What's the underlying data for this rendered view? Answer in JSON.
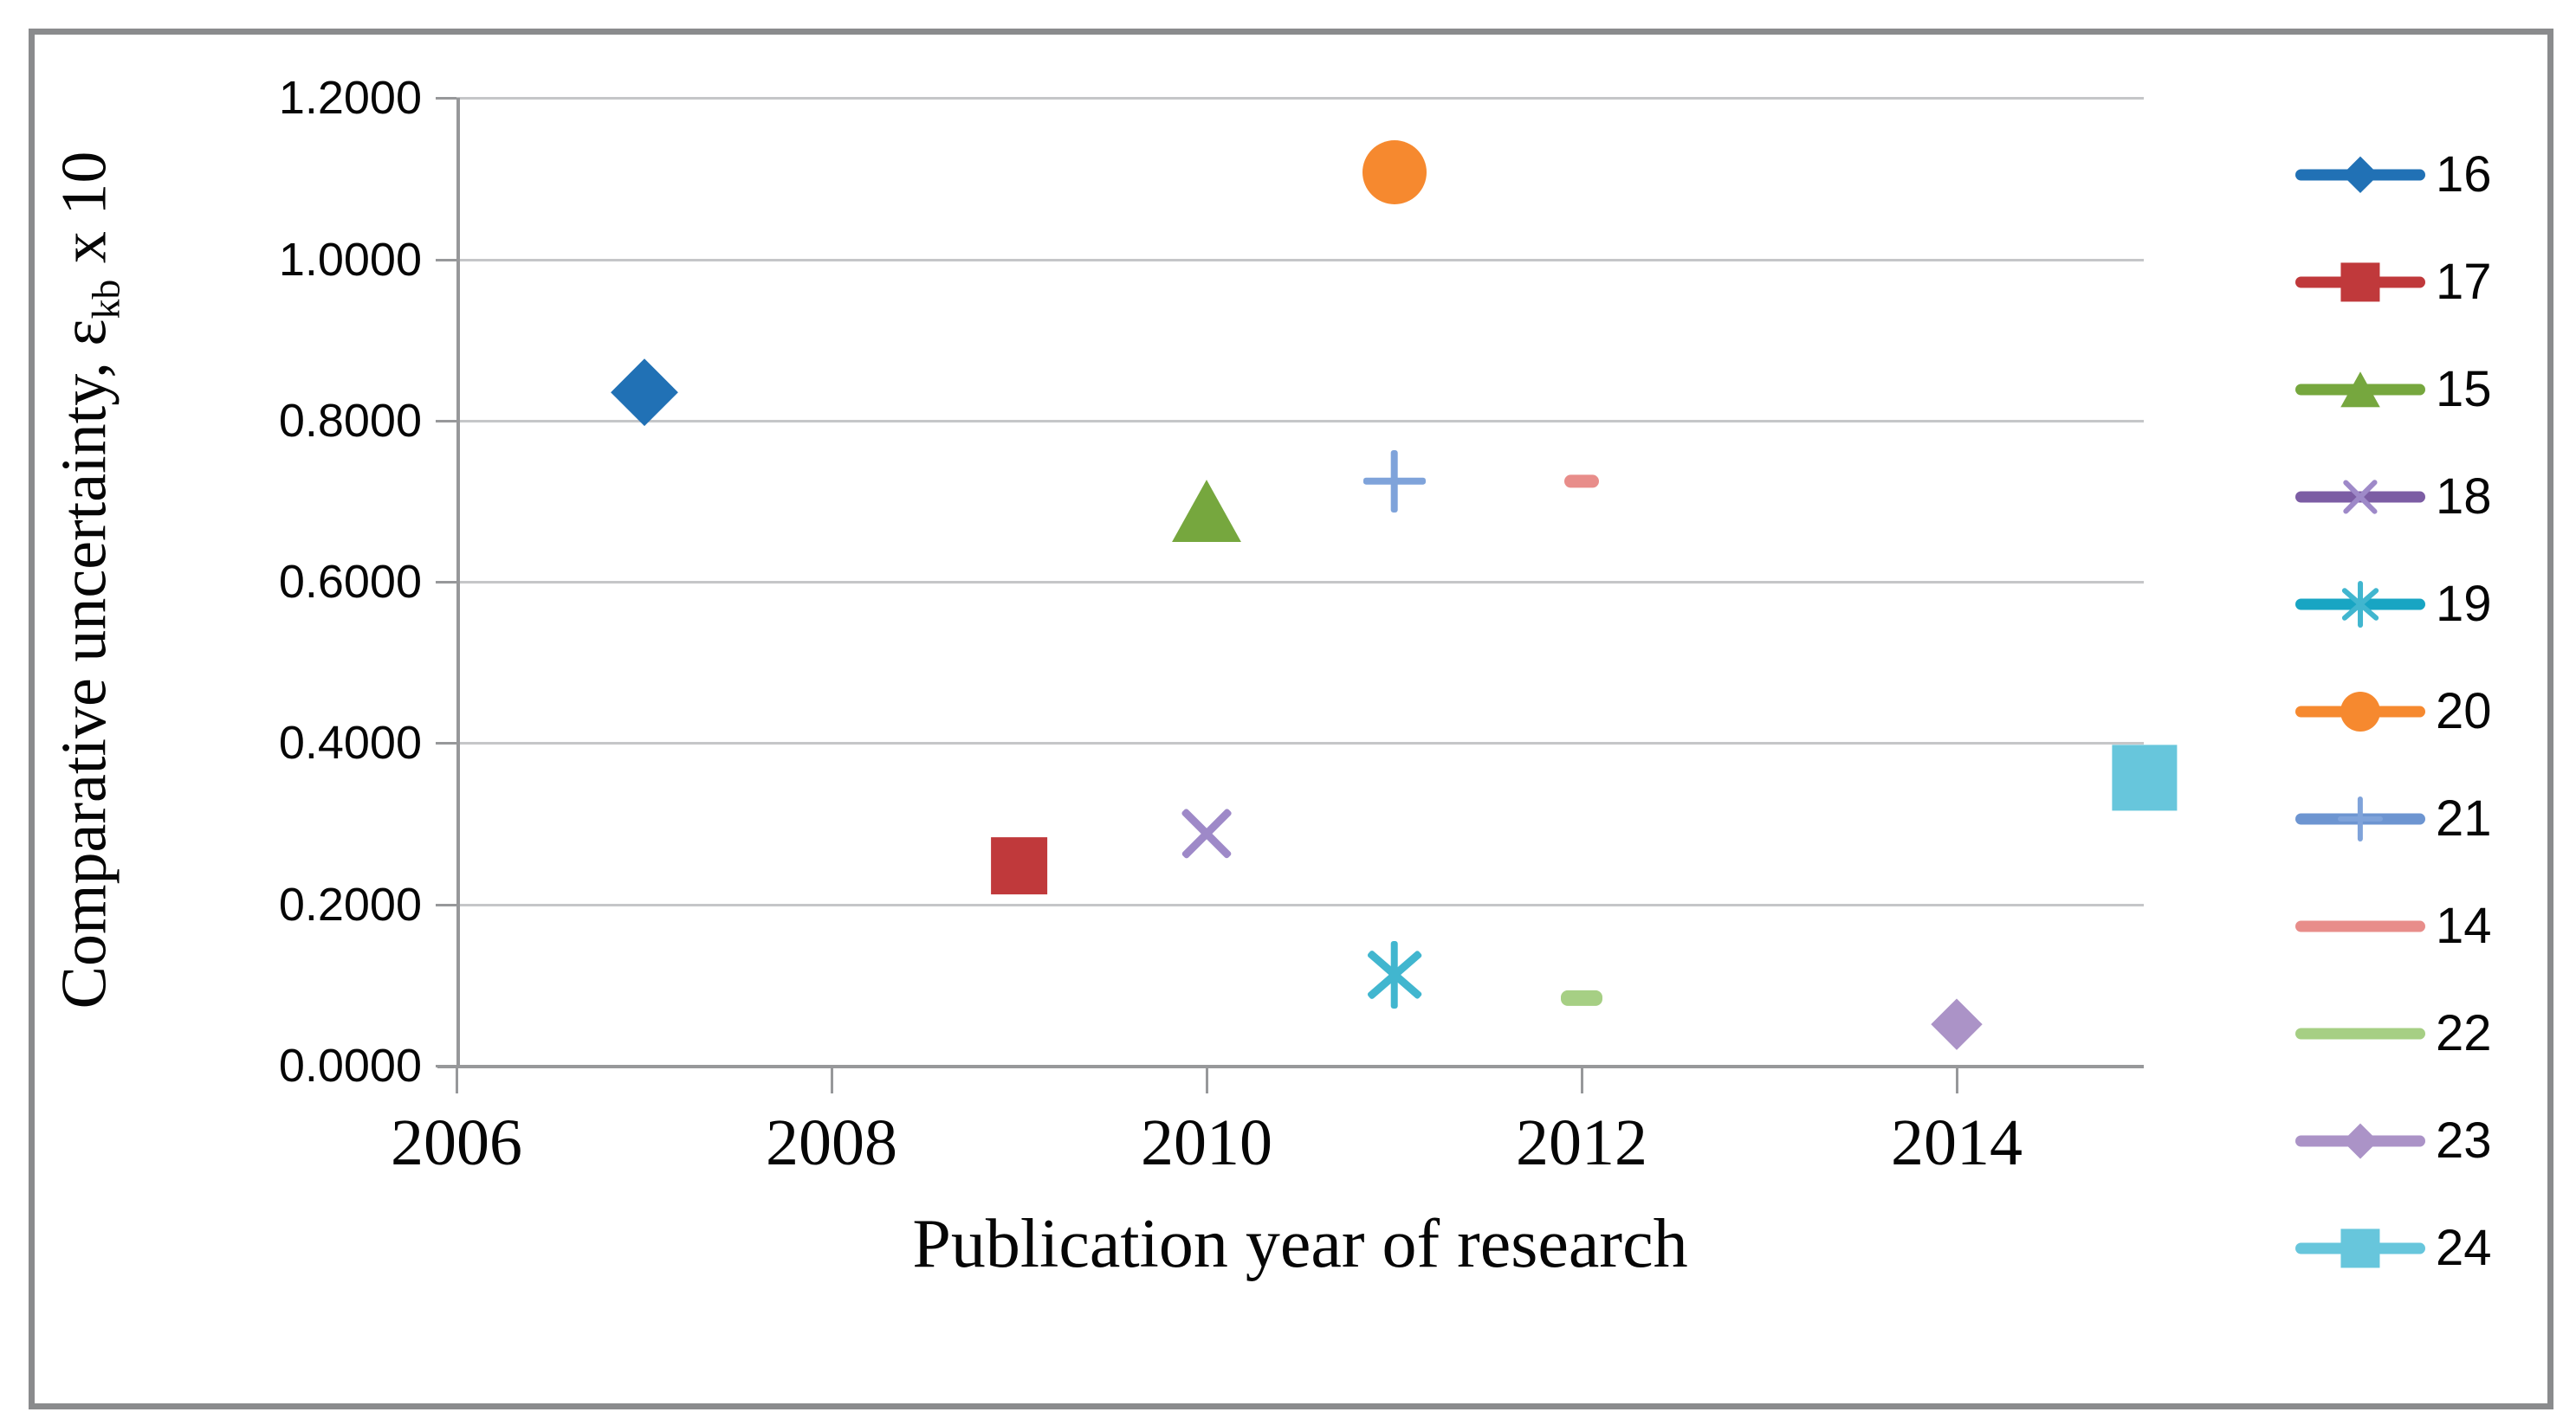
{
  "figure": {
    "frame_color": "#8a8b8d",
    "background_color": "#ffffff",
    "gridline_color": "#c5c6c8",
    "axis_color": "#97989a"
  },
  "axes": {
    "x_title": "Publication year of research",
    "y_title_main": "Comparative uncertainty, ε",
    "y_title_sub": "kb",
    "y_title_tail": " x 10"
  },
  "chart_data": {
    "type": "scatter",
    "title": "",
    "xlabel": "Publication year of research",
    "ylabel": "Comparative uncertainty, εkb x 10",
    "xlim": [
      2006,
      2015
    ],
    "ylim": [
      0.0,
      1.2
    ],
    "x_ticks": [
      2006,
      2008,
      2010,
      2012,
      2014
    ],
    "y_ticks": [
      "0.0000",
      "0.2000",
      "0.4000",
      "0.6000",
      "0.8000",
      "1.0000",
      "1.2000"
    ],
    "grid": "horizontal-only",
    "legend_position": "right",
    "series": [
      {
        "name": "16",
        "marker": "diamond",
        "color": "#2171b5",
        "line_color": "#2171b5",
        "x": 2007,
        "y": 0.835,
        "size": 76,
        "legend_size": 42
      },
      {
        "name": "17",
        "marker": "square",
        "color": "#c0393b",
        "line_color": "#c0393b",
        "x": 2009,
        "y": 0.248,
        "size": 70,
        "legend_size": 48
      },
      {
        "name": "15",
        "marker": "triangle",
        "color": "#76a73e",
        "line_color": "#76a73e",
        "x": 2010,
        "y": 0.688,
        "size": 80,
        "legend_size": 46
      },
      {
        "name": "18",
        "marker": "x",
        "color": "#9e89c8",
        "line_color": "#7c5da4",
        "x": 2010,
        "y": 0.288,
        "size": 74,
        "legend_size": 52
      },
      {
        "name": "19",
        "marker": "asterisk",
        "color": "#41b6cf",
        "line_color": "#18a5c3",
        "x": 2011,
        "y": 0.113,
        "size": 78,
        "legend_size": 54
      },
      {
        "name": "20",
        "marker": "circle",
        "color": "#f6892f",
        "line_color": "#f6892f",
        "x": 2011,
        "y": 1.108,
        "size": 74,
        "legend_size": 46
      },
      {
        "name": "21",
        "marker": "plus",
        "color": "#7fa3da",
        "line_color": "#6d95d1",
        "x": 2011,
        "y": 0.725,
        "size": 72,
        "legend_size": 52
      },
      {
        "name": "14",
        "marker": "dash",
        "color": "#e88d8a",
        "line_color": "#e88d8a",
        "x": 2012,
        "y": 0.725,
        "size": 40,
        "legend_size": 0
      },
      {
        "name": "22",
        "marker": "dash",
        "color": "#a6cf84",
        "line_color": "#a6cf84",
        "x": 2012,
        "y": 0.084,
        "size": 48,
        "legend_size": 0
      },
      {
        "name": "23",
        "marker": "diamond",
        "color": "#ab93c7",
        "line_color": "#ab93c7",
        "x": 2014,
        "y": 0.051,
        "size": 58,
        "legend_size": 40
      },
      {
        "name": "24",
        "marker": "square",
        "color": "#67c6dc",
        "line_color": "#67c6dc",
        "x": 2015,
        "y": 0.357,
        "size": 80,
        "legend_size": 48
      }
    ]
  }
}
